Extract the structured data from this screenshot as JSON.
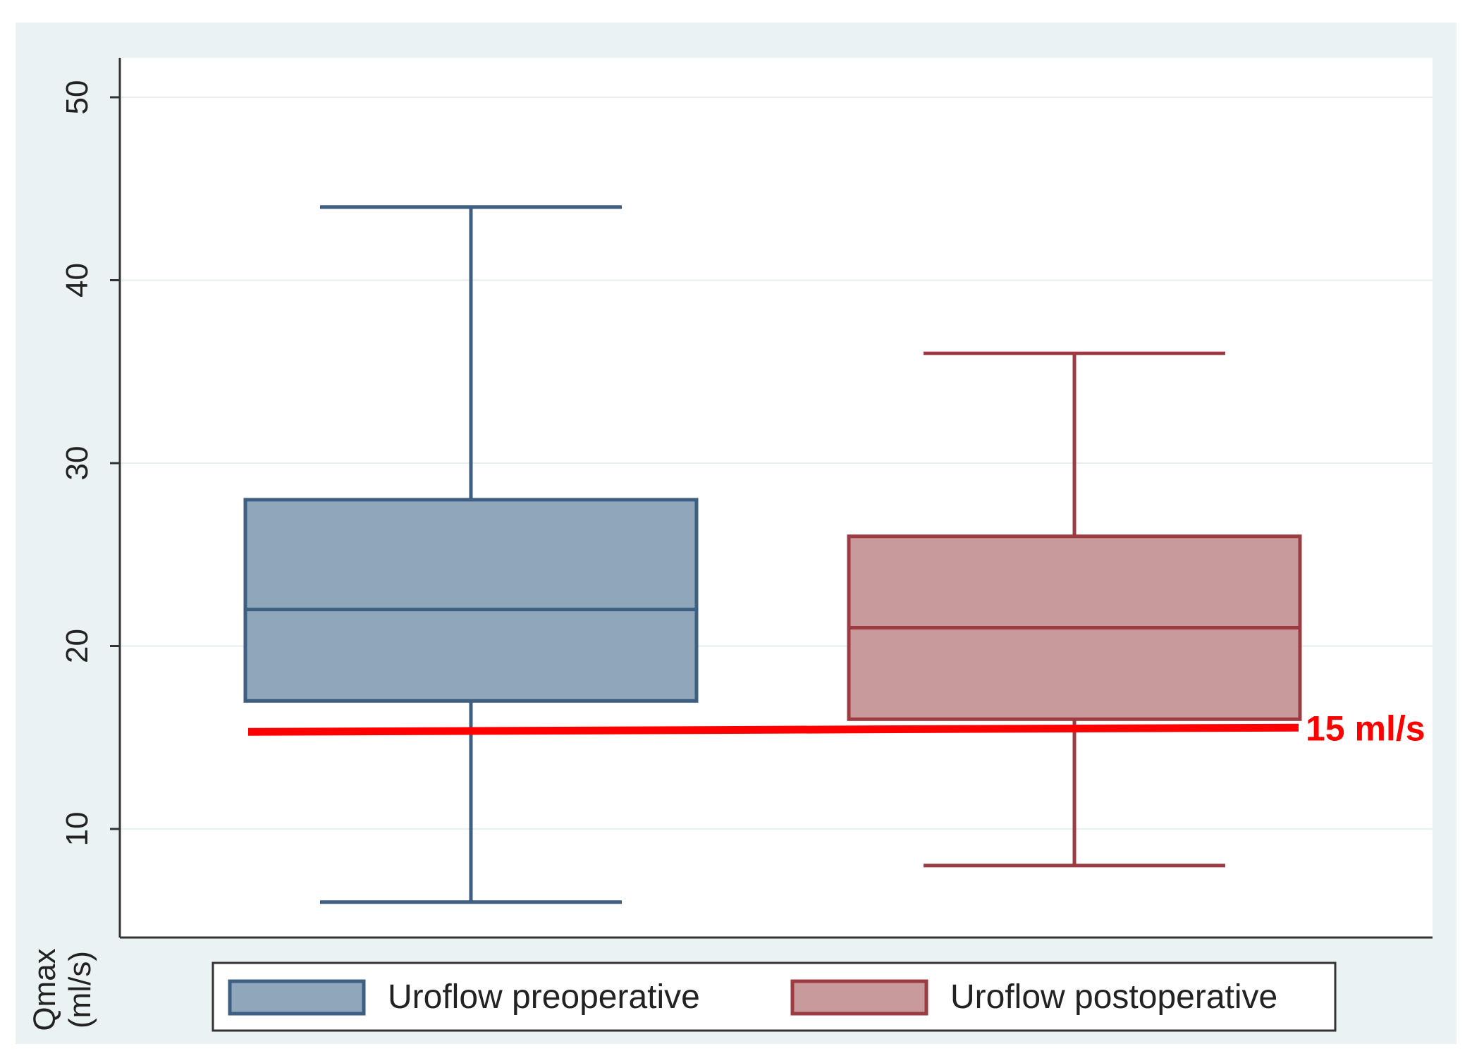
{
  "chart_data": {
    "type": "box",
    "ylabel": "Qmax\n(ml/s)",
    "ylim": [
      4,
      52
    ],
    "yticks": [
      10,
      20,
      30,
      40,
      50
    ],
    "grid": true,
    "legend_position": "bottom",
    "series": [
      {
        "name": "Uroflow preoperative",
        "min": 6,
        "q1": 17,
        "median": 22,
        "q3": 28,
        "max": 44,
        "fill": "#8fa6bb",
        "stroke": "#3e5f82"
      },
      {
        "name": "Uroflow postoperative",
        "min": 8,
        "q1": 16,
        "median": 21,
        "q3": 26,
        "max": 36,
        "fill": "#c99a9c",
        "stroke": "#9c3c42"
      }
    ],
    "reference_line": {
      "value": 15,
      "label": "15 ml/s",
      "color": "#ff0000"
    }
  },
  "colors": {
    "outer_background": "#eaf2f3",
    "plot_background": "#ffffff",
    "gridline": "#e6eef0"
  }
}
